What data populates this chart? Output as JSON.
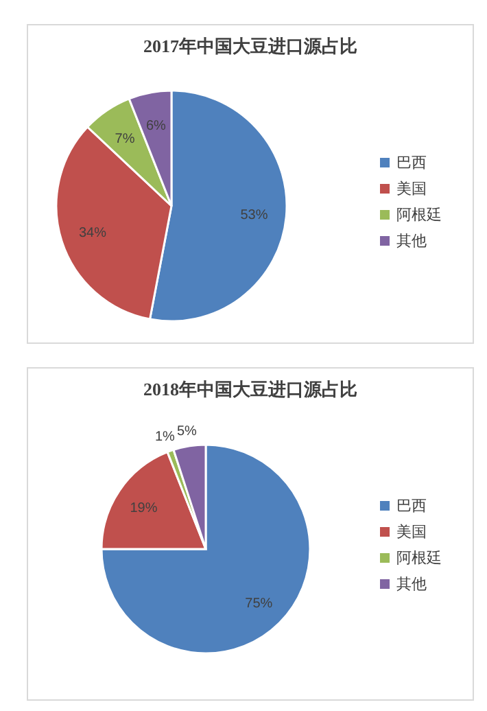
{
  "chart_data": [
    {
      "type": "pie",
      "title": "2017年中国大豆进口源占比",
      "categories": [
        "巴西",
        "美国",
        "阿根廷",
        "其他"
      ],
      "values": [
        53,
        34,
        7,
        6
      ],
      "value_labels": [
        "53%",
        "34%",
        "7%",
        "6%"
      ],
      "colors": [
        "#4f81bd",
        "#c0504d",
        "#9bbb59",
        "#8064a2"
      ],
      "legend": "right"
    },
    {
      "type": "pie",
      "title": "2018年中国大豆进口源占比",
      "categories": [
        "巴西",
        "美国",
        "阿根廷",
        "其他"
      ],
      "values": [
        75,
        19,
        1,
        5
      ],
      "value_labels": [
        "75%",
        "19%",
        "1%",
        "5%"
      ],
      "colors": [
        "#4f81bd",
        "#c0504d",
        "#9bbb59",
        "#8064a2"
      ],
      "legend": "right"
    }
  ]
}
